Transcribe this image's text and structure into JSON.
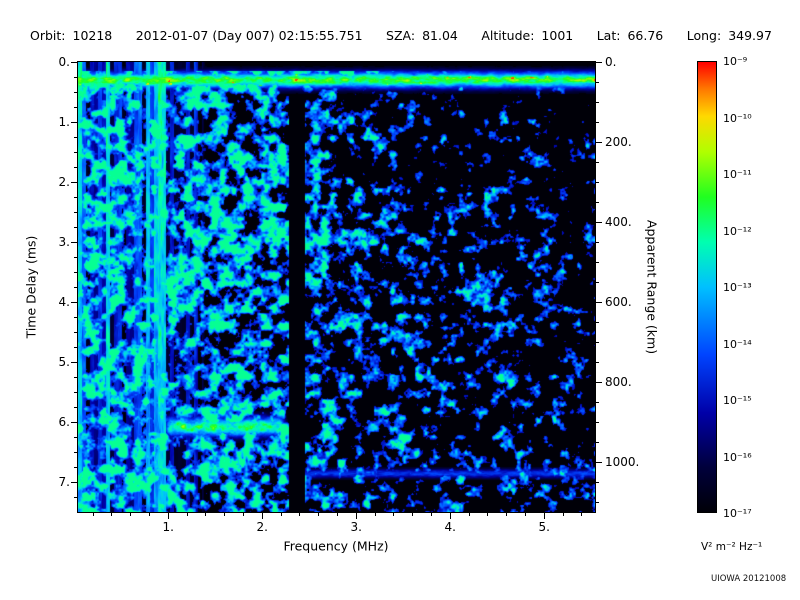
{
  "header": {
    "segments": [
      {
        "label": "Orbit:",
        "value": "10218"
      },
      {
        "label": "",
        "value": "2012-01-07 (Day 007) 02:15:55.751"
      },
      {
        "label": "SZA:",
        "value": "81.04"
      },
      {
        "label": "Altitude:",
        "value": "1001"
      },
      {
        "label": "Lat:",
        "value": "66.76"
      },
      {
        "label": "Long:",
        "value": "349.97"
      }
    ]
  },
  "chart_data": {
    "type": "heatmap",
    "title": "",
    "xlabel": "Frequency (MHz)",
    "ylabel_left": "Time Delay (ms)",
    "ylabel_right": "Apparent Range (km)",
    "xlim": [
      0.04,
      5.54
    ],
    "ylim_left": [
      0,
      7.5
    ],
    "ylim_right": [
      0,
      1125
    ],
    "grid": false,
    "legend_position": "colorbar-right",
    "x_ticks": [
      {
        "v": 1,
        "label": "1."
      },
      {
        "v": 2,
        "label": "2."
      },
      {
        "v": 3,
        "label": "3."
      },
      {
        "v": 4,
        "label": "4."
      },
      {
        "v": 5,
        "label": "5."
      }
    ],
    "y_ticks_left": [
      {
        "v": 0,
        "label": "0."
      },
      {
        "v": 1,
        "label": "1."
      },
      {
        "v": 2,
        "label": "2."
      },
      {
        "v": 3,
        "label": "3."
      },
      {
        "v": 4,
        "label": "4."
      },
      {
        "v": 5,
        "label": "5."
      },
      {
        "v": 6,
        "label": "6."
      },
      {
        "v": 7,
        "label": "7."
      }
    ],
    "y_ticks_right": [
      {
        "v": 0,
        "label": "0."
      },
      {
        "v": 200,
        "label": "200."
      },
      {
        "v": 400,
        "label": "400."
      },
      {
        "v": 600,
        "label": "600."
      },
      {
        "v": 800,
        "label": "800."
      },
      {
        "v": 1000,
        "label": "1000."
      }
    ],
    "colorbar": {
      "tick_labels": [
        "10⁻⁹",
        "10⁻¹⁰",
        "10⁻¹¹",
        "10⁻¹²",
        "10⁻¹³",
        "10⁻¹⁴",
        "10⁻¹⁵",
        "10⁻¹⁶",
        "10⁻¹⁷"
      ],
      "unit": "V² m⁻² Hz⁻¹",
      "scale": "log",
      "range_top": "1e-9",
      "range_bottom": "1e-17"
    },
    "colormap_stops": [
      {
        "v": 0.0,
        "c": "#000008"
      },
      {
        "v": 0.1,
        "c": "#00003c"
      },
      {
        "v": 0.22,
        "c": "#0000a8"
      },
      {
        "v": 0.35,
        "c": "#0044ff"
      },
      {
        "v": 0.5,
        "c": "#00c0ff"
      },
      {
        "v": 0.6,
        "c": "#00ffb0"
      },
      {
        "v": 0.7,
        "c": "#20ff20"
      },
      {
        "v": 0.8,
        "c": "#b0ff00"
      },
      {
        "v": 0.88,
        "c": "#ffd800"
      },
      {
        "v": 0.94,
        "c": "#ff7800"
      },
      {
        "v": 1.0,
        "c": "#ff0000"
      }
    ],
    "features": [
      {
        "name": "first-echo-band",
        "t_center": 0.3,
        "t_sigma": 0.14,
        "f_range": [
          0.04,
          5.54
        ],
        "peak": 0.95,
        "note": "bright green horizontal band near zero delay across all frequencies"
      },
      {
        "name": "plasma-stripes",
        "f_range": [
          0.04,
          1.42
        ],
        "t_range": [
          0,
          7.5
        ],
        "peak": 0.78,
        "note": "vertical green/cyan stripes at low frequency spanning full delay range"
      },
      {
        "name": "diffuse-scatter",
        "f_range": [
          0.04,
          5.54
        ],
        "t_range": [
          0.15,
          7.5
        ],
        "peak": 0.6,
        "note": "blue speckle, dense below ~2.3 MHz, sparse toward 5.5 MHz"
      },
      {
        "name": "ground-echo-band",
        "t_center": 6.08,
        "t_sigma": 0.17,
        "f_range": [
          0.92,
          2.3
        ],
        "peak": 0.78,
        "note": "green horizontal echo band near 6 ms between ~1 and 2.2 MHz"
      },
      {
        "name": "range-line-1000km",
        "t_center": 6.86,
        "t_sigma": 0.08,
        "f_range": [
          2.3,
          5.54
        ],
        "peak": 0.4,
        "note": "faint blue horizontal line near 1000 km apparent range"
      },
      {
        "name": "attenuation-gap",
        "f_range": [
          2.28,
          2.45
        ],
        "t_range": [
          0.55,
          7.5
        ],
        "note": "dark vertical gap near 2.35 MHz"
      }
    ]
  },
  "footer": {
    "credit": "UIOWA 20121008"
  }
}
